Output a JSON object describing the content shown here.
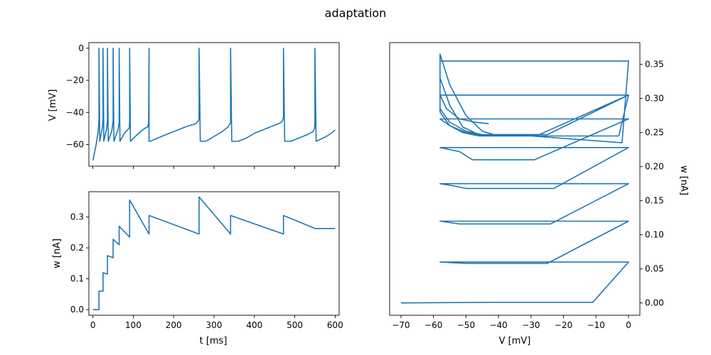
{
  "figure": {
    "suptitle": "adaptation",
    "line_color": "#1f77b4"
  },
  "chart_data": [
    {
      "id": "voltage-trace",
      "type": "line",
      "xlabel": "",
      "ylabel": "V [mV]",
      "xlim": [
        -10,
        610
      ],
      "ylim": [
        -73.5,
        3.5
      ],
      "xticks": [
        0,
        100,
        200,
        300,
        400,
        500,
        600
      ],
      "xtick_labels": [
        "",
        "",
        "",
        "",
        "",
        "",
        ""
      ],
      "yticks": [
        -60,
        -40,
        -20,
        0
      ],
      "ytick_labels": [
        "−60",
        "−40",
        "−20",
        "0"
      ],
      "series": [
        {
          "name": "",
          "x": [
            0,
            8,
            13,
            15,
            15,
            17,
            23,
            25,
            25,
            27,
            34,
            36,
            36,
            38,
            47,
            50,
            50,
            52,
            62,
            65,
            65,
            67,
            78,
            85,
            90,
            91,
            91,
            93,
            105,
            118,
            128,
            136,
            138,
            139,
            139,
            142,
            160,
            180,
            200,
            230,
            255,
            262,
            263,
            263,
            266,
            280,
            300,
            320,
            335,
            340,
            341,
            341,
            344,
            360,
            380,
            400,
            420,
            440,
            460,
            468,
            471,
            472,
            472,
            475,
            490,
            510,
            530,
            545,
            549,
            550,
            550,
            553,
            570,
            585,
            600
          ],
          "y": [
            -70,
            -60,
            -52,
            -44,
            0,
            -58,
            -50,
            -45,
            0,
            -58,
            -50,
            -45,
            0,
            -58,
            -51,
            -45,
            0,
            -58,
            -51,
            -46,
            0,
            -58,
            -53,
            -51,
            -50,
            -46,
            0,
            -58,
            -55,
            -52,
            -50,
            -49,
            -46,
            0,
            -58,
            -58,
            -56,
            -54,
            -52,
            -49,
            -47,
            -45,
            -44,
            0,
            -58,
            -58,
            -55,
            -52,
            -49,
            -47,
            -46,
            0,
            -58,
            -58,
            -56,
            -53,
            -51,
            -49,
            -47,
            -46,
            -44,
            -43,
            0,
            -58,
            -58,
            -56,
            -54,
            -52,
            -50,
            -46,
            0,
            -58,
            -56,
            -54,
            -51
          ]
        }
      ]
    },
    {
      "id": "adaptation-trace",
      "type": "line",
      "xlabel": "t [ms]",
      "ylabel": "w [nA]",
      "xlim": [
        -10,
        610
      ],
      "ylim": [
        -0.018,
        0.382
      ],
      "xticks": [
        0,
        100,
        200,
        300,
        400,
        500,
        600
      ],
      "xtick_labels": [
        "0",
        "100",
        "200",
        "300",
        "400",
        "500",
        "600"
      ],
      "yticks": [
        0.0,
        0.1,
        0.2,
        0.3
      ],
      "ytick_labels": [
        "0.0",
        "0.1",
        "0.2",
        "0.3"
      ],
      "series": [
        {
          "name": "",
          "x": [
            0,
            15,
            15,
            25,
            25,
            36,
            36,
            50,
            50,
            65,
            65,
            91,
            91,
            139,
            139,
            263,
            263,
            341,
            341,
            472,
            472,
            550,
            550,
            600
          ],
          "y": [
            0.0,
            0.0,
            0.06,
            0.06,
            0.12,
            0.115,
            0.175,
            0.168,
            0.228,
            0.21,
            0.27,
            0.235,
            0.355,
            0.245,
            0.305,
            0.245,
            0.365,
            0.245,
            0.305,
            0.245,
            0.305,
            0.263,
            0.263,
            0.263
          ]
        }
      ]
    },
    {
      "id": "phase-plane",
      "type": "line",
      "xlabel": "V [mV]",
      "ylabel": "w [nA]",
      "xlim": [
        -73.5,
        3.5
      ],
      "ylim": [
        -0.018,
        0.382
      ],
      "xticks": [
        -70,
        -60,
        -50,
        -40,
        -30,
        -20,
        -10,
        0
      ],
      "xtick_labels": [
        "−70",
        "−60",
        "−50",
        "−40",
        "−30",
        "−20",
        "−10",
        "0"
      ],
      "yticks": [
        0.0,
        0.05,
        0.1,
        0.15,
        0.2,
        0.25,
        0.3,
        0.35
      ],
      "ytick_labels": [
        "0.00",
        "0.05",
        "0.10",
        "0.15",
        "0.20",
        "0.25",
        "0.30",
        "0.35"
      ],
      "series": [
        {
          "name": "",
          "x": [
            -70,
            -42,
            -11,
            0,
            -58,
            -50,
            -25,
            0,
            -58,
            -52,
            -24,
            0,
            -58,
            -54,
            -50,
            -23,
            0,
            -58,
            -52,
            -48,
            -29,
            0,
            -58,
            -55,
            -51,
            -46,
            -30,
            -2,
            0,
            -58,
            -58,
            -55,
            -51,
            -46,
            -25,
            0,
            -58,
            -58,
            -55,
            -50,
            -45,
            -40,
            -3,
            0,
            -58,
            -58,
            -55,
            -50,
            -45,
            -25,
            0,
            -58,
            -58,
            -55,
            -50,
            -45,
            -28,
            0,
            -58,
            -56,
            -52,
            -47,
            -43
          ],
          "y": [
            0.0,
            0.001,
            0.001,
            0.06,
            0.06,
            0.058,
            0.058,
            0.12,
            0.12,
            0.116,
            0.116,
            0.175,
            0.175,
            0.172,
            0.168,
            0.168,
            0.228,
            0.228,
            0.222,
            0.21,
            0.21,
            0.27,
            0.27,
            0.26,
            0.25,
            0.245,
            0.245,
            0.235,
            0.355,
            0.355,
            0.33,
            0.29,
            0.258,
            0.247,
            0.247,
            0.305,
            0.305,
            0.365,
            0.32,
            0.275,
            0.252,
            0.245,
            0.245,
            0.305,
            0.305,
            0.285,
            0.265,
            0.252,
            0.247,
            0.247,
            0.305,
            0.305,
            0.28,
            0.26,
            0.25,
            0.246,
            0.246,
            0.305,
            0.305,
            0.285,
            0.27,
            0.265,
            0.263
          ]
        }
      ]
    }
  ]
}
